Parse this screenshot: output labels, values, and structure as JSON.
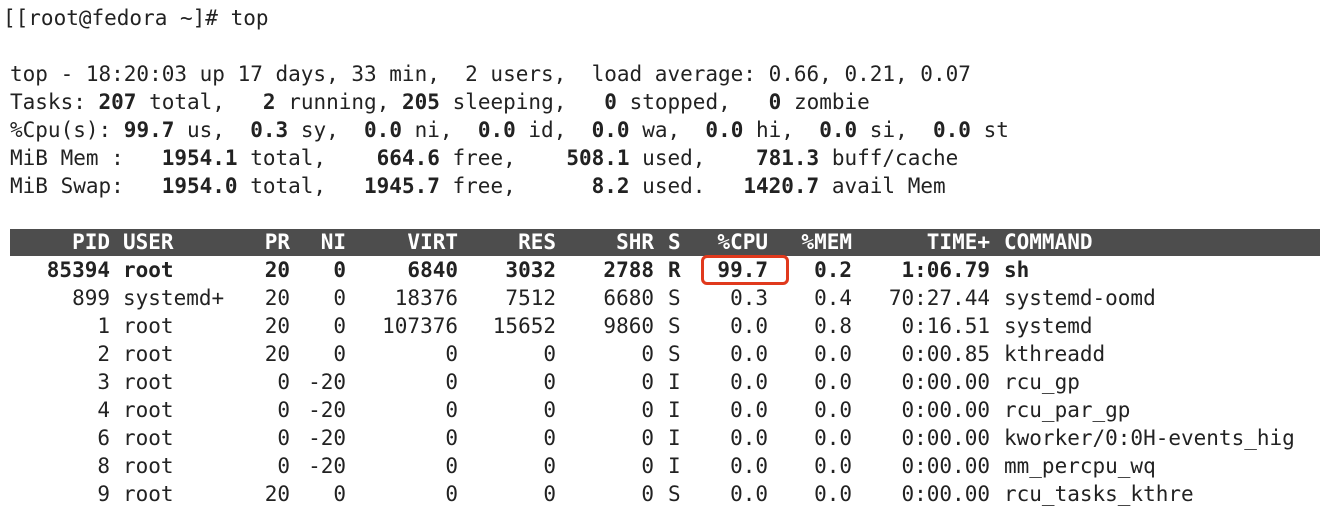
{
  "terminal": {
    "prompt": "[[root@fedora ~]# top",
    "summary": {
      "line1": "top - 18:20:03 up 17 days, 33 min,  2 users,  load average: 0.66, 0.21, 0.07",
      "tasks": {
        "label": "Tasks: ",
        "total": "207",
        "total_label": " total,   ",
        "running": "2",
        "running_label": " running, ",
        "sleeping": "205",
        "sleeping_label": " sleeping,   ",
        "stopped": "0",
        "stopped_label": " stopped,   ",
        "zombie": "0",
        "zombie_label": " zombie"
      },
      "cpu": {
        "label": "%Cpu(s): ",
        "us": "99.7",
        "us_label": " us,  ",
        "sy": "0.3",
        "sy_label": " sy,  ",
        "ni": "0.0",
        "ni_label": " ni,  ",
        "id": "0.0",
        "id_label": " id,  ",
        "wa": "0.0",
        "wa_label": " wa,  ",
        "hi": "0.0",
        "hi_label": " hi,  ",
        "si": "0.0",
        "si_label": " si,  ",
        "st": "0.0",
        "st_label": " st"
      },
      "mem": {
        "label": "MiB Mem :   ",
        "total": "1954.1",
        "total_label": " total,    ",
        "free": "664.6",
        "free_label": " free,    ",
        "used": "508.1",
        "used_label": " used,    ",
        "buff": "781.3",
        "buff_label": " buff/cache"
      },
      "swap": {
        "label": "MiB Swap:   ",
        "total": "1954.0",
        "total_label": " total,   ",
        "free": "1945.7",
        "free_label": " free,      ",
        "used": "8.2",
        "used_label": " used.   ",
        "avail": "1420.7",
        "avail_label": " avail Mem"
      }
    },
    "columns": [
      "PID",
      "USER",
      "PR",
      "NI",
      "VIRT",
      "RES",
      "SHR",
      "S",
      "%CPU",
      "%MEM",
      "TIME+",
      "COMMAND"
    ],
    "processes": [
      {
        "pid": "85394",
        "user": "root",
        "pr": "20",
        "ni": "0",
        "virt": "6840",
        "res": "3032",
        "shr": "2788",
        "s": "R",
        "cpu": "99.7",
        "mem": "0.2",
        "time": "1:06.79",
        "command": "sh",
        "bold": true
      },
      {
        "pid": "899",
        "user": "systemd+",
        "pr": "20",
        "ni": "0",
        "virt": "18376",
        "res": "7512",
        "shr": "6680",
        "s": "S",
        "cpu": "0.3",
        "mem": "0.4",
        "time": "70:27.44",
        "command": "systemd-oomd"
      },
      {
        "pid": "1",
        "user": "root",
        "pr": "20",
        "ni": "0",
        "virt": "107376",
        "res": "15652",
        "shr": "9860",
        "s": "S",
        "cpu": "0.0",
        "mem": "0.8",
        "time": "0:16.51",
        "command": "systemd"
      },
      {
        "pid": "2",
        "user": "root",
        "pr": "20",
        "ni": "0",
        "virt": "0",
        "res": "0",
        "shr": "0",
        "s": "S",
        "cpu": "0.0",
        "mem": "0.0",
        "time": "0:00.85",
        "command": "kthreadd"
      },
      {
        "pid": "3",
        "user": "root",
        "pr": "0",
        "ni": "-20",
        "virt": "0",
        "res": "0",
        "shr": "0",
        "s": "I",
        "cpu": "0.0",
        "mem": "0.0",
        "time": "0:00.00",
        "command": "rcu_gp"
      },
      {
        "pid": "4",
        "user": "root",
        "pr": "0",
        "ni": "-20",
        "virt": "0",
        "res": "0",
        "shr": "0",
        "s": "I",
        "cpu": "0.0",
        "mem": "0.0",
        "time": "0:00.00",
        "command": "rcu_par_gp"
      },
      {
        "pid": "6",
        "user": "root",
        "pr": "0",
        "ni": "-20",
        "virt": "0",
        "res": "0",
        "shr": "0",
        "s": "I",
        "cpu": "0.0",
        "mem": "0.0",
        "time": "0:00.00",
        "command": "kworker/0:0H-events_hig"
      },
      {
        "pid": "8",
        "user": "root",
        "pr": "0",
        "ni": "-20",
        "virt": "0",
        "res": "0",
        "shr": "0",
        "s": "I",
        "cpu": "0.0",
        "mem": "0.0",
        "time": "0:00.00",
        "command": "mm_percpu_wq"
      },
      {
        "pid": "9",
        "user": "root",
        "pr": "20",
        "ni": "0",
        "virt": "0",
        "res": "0",
        "shr": "0",
        "s": "S",
        "cpu": "0.0",
        "mem": "0.0",
        "time": "0:00.00",
        "command": "rcu_tasks_kthre"
      }
    ],
    "highlight": {
      "color": "#e0391d"
    },
    "header_bg": "#4d4d4d"
  }
}
